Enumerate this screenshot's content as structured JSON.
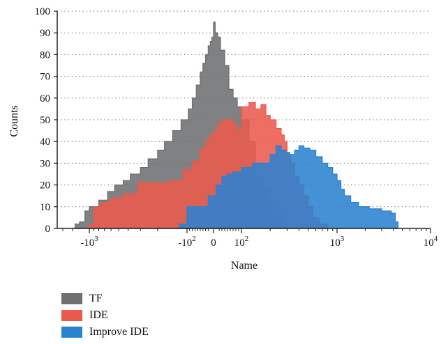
{
  "chart_data": {
    "type": "area",
    "xlabel": "Name",
    "ylabel": "Counts",
    "x_scale": "symlog",
    "xlim": [
      -3000,
      10000
    ],
    "ylim": [
      0,
      100
    ],
    "grid": "dotted-horizontal",
    "yticks": [
      {
        "value": 0,
        "label": "0"
      },
      {
        "value": 10,
        "label": "10"
      },
      {
        "value": 20,
        "label": "20"
      },
      {
        "value": 30,
        "label": "30"
      },
      {
        "value": 40,
        "label": "40"
      },
      {
        "value": 50,
        "label": "50"
      },
      {
        "value": 60,
        "label": "60"
      },
      {
        "value": 70,
        "label": "70"
      },
      {
        "value": 80,
        "label": "80"
      },
      {
        "value": 90,
        "label": "90"
      },
      {
        "value": 100,
        "label": "100"
      }
    ],
    "xticks": [
      {
        "value": -1000,
        "base": "-10",
        "exp": "3"
      },
      {
        "value": -100,
        "base": "-10",
        "exp": "2"
      },
      {
        "value": 0,
        "base": "0",
        "exp": ""
      },
      {
        "value": 100,
        "base": "10",
        "exp": "2"
      },
      {
        "value": 1000,
        "base": "10",
        "exp": "3"
      },
      {
        "value": 10000,
        "base": "10",
        "exp": "4"
      }
    ],
    "legend_position": "bottom-left",
    "series": [
      {
        "name": "TF",
        "color": "#6e6f71",
        "points": [
          [
            -2000,
            0
          ],
          [
            -1800,
            2
          ],
          [
            -1500,
            3
          ],
          [
            -1200,
            8
          ],
          [
            -1000,
            10
          ],
          [
            -800,
            13
          ],
          [
            -650,
            17
          ],
          [
            -550,
            20
          ],
          [
            -450,
            22
          ],
          [
            -380,
            25
          ],
          [
            -300,
            28
          ],
          [
            -250,
            32
          ],
          [
            -200,
            36
          ],
          [
            -170,
            40
          ],
          [
            -140,
            45
          ],
          [
            -115,
            50
          ],
          [
            -95,
            55
          ],
          [
            -80,
            60
          ],
          [
            -65,
            66
          ],
          [
            -50,
            72
          ],
          [
            -40,
            76
          ],
          [
            -30,
            80
          ],
          [
            -20,
            84
          ],
          [
            -12,
            86
          ],
          [
            -6,
            88
          ],
          [
            0,
            95
          ],
          [
            6,
            90
          ],
          [
            15,
            88
          ],
          [
            25,
            82
          ],
          [
            40,
            75
          ],
          [
            55,
            64
          ],
          [
            70,
            60
          ],
          [
            85,
            56
          ],
          [
            100,
            50
          ],
          [
            120,
            40
          ],
          [
            140,
            24
          ],
          [
            170,
            18
          ],
          [
            200,
            12
          ],
          [
            240,
            7
          ],
          [
            280,
            3
          ],
          [
            320,
            0
          ]
        ]
      },
      {
        "name": "IDE",
        "color": "#ea5a4c",
        "points": [
          [
            -1000,
            0
          ],
          [
            -1000,
            2
          ],
          [
            -900,
            10
          ],
          [
            -750,
            12
          ],
          [
            -600,
            14
          ],
          [
            -450,
            16
          ],
          [
            -320,
            21
          ],
          [
            -200,
            21
          ],
          [
            -150,
            22
          ],
          [
            -110,
            27
          ],
          [
            -80,
            31
          ],
          [
            -50,
            37
          ],
          [
            -30,
            40
          ],
          [
            -15,
            43
          ],
          [
            0,
            45
          ],
          [
            15,
            48
          ],
          [
            30,
            50
          ],
          [
            50,
            50
          ],
          [
            70,
            48
          ],
          [
            85,
            45
          ],
          [
            100,
            56
          ],
          [
            120,
            58
          ],
          [
            140,
            55
          ],
          [
            160,
            57
          ],
          [
            180,
            52
          ],
          [
            200,
            50
          ],
          [
            230,
            46
          ],
          [
            260,
            43
          ],
          [
            280,
            40
          ],
          [
            300,
            34
          ],
          [
            330,
            30
          ],
          [
            360,
            24
          ],
          [
            400,
            20
          ],
          [
            450,
            15
          ],
          [
            500,
            10
          ],
          [
            560,
            5
          ],
          [
            650,
            2
          ],
          [
            800,
            0
          ]
        ]
      },
      {
        "name": "Improve IDE",
        "color": "#2b82cf",
        "points": [
          [
            -120,
            0
          ],
          [
            -120,
            2
          ],
          [
            -100,
            10
          ],
          [
            -60,
            10
          ],
          [
            -20,
            15
          ],
          [
            0,
            15
          ],
          [
            10,
            20
          ],
          [
            30,
            24
          ],
          [
            50,
            25
          ],
          [
            70,
            26
          ],
          [
            100,
            28
          ],
          [
            130,
            30
          ],
          [
            170,
            30
          ],
          [
            200,
            34
          ],
          [
            230,
            38
          ],
          [
            260,
            36
          ],
          [
            290,
            35
          ],
          [
            320,
            34
          ],
          [
            360,
            36
          ],
          [
            400,
            38
          ],
          [
            450,
            37
          ],
          [
            520,
            36
          ],
          [
            600,
            33
          ],
          [
            700,
            30
          ],
          [
            800,
            28
          ],
          [
            900,
            25
          ],
          [
            1000,
            22
          ],
          [
            1100,
            18
          ],
          [
            1200,
            15
          ],
          [
            1400,
            12
          ],
          [
            1700,
            10
          ],
          [
            2200,
            9
          ],
          [
            3000,
            8
          ],
          [
            3800,
            7
          ],
          [
            4200,
            3
          ],
          [
            4500,
            0
          ]
        ]
      }
    ]
  }
}
